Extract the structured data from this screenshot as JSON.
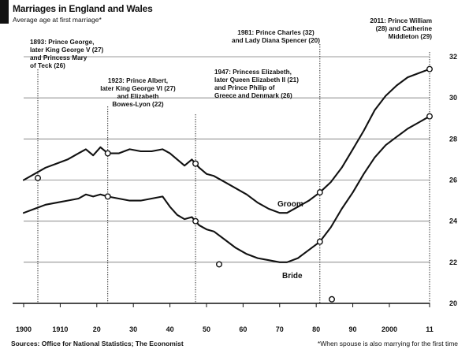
{
  "chart_data": {
    "type": "line",
    "title": "Marriages in England and Wales",
    "subtitle": "Average age at first marriage*",
    "x_ticks": [
      "1900",
      "1910",
      "20",
      "30",
      "40",
      "50",
      "60",
      "70",
      "80",
      "90",
      "2000",
      "11"
    ],
    "xlim": [
      1900,
      2011
    ],
    "y_ticks": [
      "32",
      "30",
      "28",
      "26",
      "24",
      "22",
      "20"
    ],
    "ylim": [
      20,
      32
    ],
    "grid": true,
    "series": [
      {
        "name": "Groom",
        "x": [
          1900,
          1903,
          1906,
          1909,
          1912,
          1915,
          1917,
          1919,
          1921,
          1923,
          1926,
          1929,
          1932,
          1935,
          1938,
          1940,
          1942,
          1944,
          1946,
          1948,
          1950,
          1952,
          1955,
          1958,
          1961,
          1964,
          1967,
          1970,
          1972,
          1975,
          1978,
          1981,
          1984,
          1987,
          1990,
          1993,
          1996,
          1999,
          2002,
          2005,
          2008,
          2011
        ],
        "y": [
          26.0,
          26.3,
          26.6,
          26.8,
          27.0,
          27.3,
          27.5,
          27.2,
          27.6,
          27.3,
          27.3,
          27.5,
          27.4,
          27.4,
          27.5,
          27.3,
          27.0,
          26.7,
          27.0,
          26.6,
          26.3,
          26.2,
          25.9,
          25.6,
          25.3,
          24.9,
          24.6,
          24.4,
          24.4,
          24.7,
          25.0,
          25.4,
          25.9,
          26.6,
          27.5,
          28.4,
          29.4,
          30.1,
          30.6,
          31.0,
          31.2,
          31.4
        ]
      },
      {
        "name": "Bride",
        "x": [
          1900,
          1903,
          1906,
          1909,
          1912,
          1915,
          1917,
          1919,
          1921,
          1923,
          1926,
          1929,
          1932,
          1935,
          1938,
          1940,
          1942,
          1944,
          1946,
          1948,
          1950,
          1952,
          1955,
          1958,
          1961,
          1964,
          1967,
          1970,
          1972,
          1975,
          1978,
          1981,
          1984,
          1987,
          1990,
          1993,
          1996,
          1999,
          2002,
          2005,
          2008,
          2011
        ],
        "y": [
          24.4,
          24.6,
          24.8,
          24.9,
          25.0,
          25.1,
          25.3,
          25.2,
          25.3,
          25.2,
          25.1,
          25.0,
          25.0,
          25.1,
          25.2,
          24.7,
          24.3,
          24.1,
          24.2,
          23.8,
          23.6,
          23.5,
          23.1,
          22.7,
          22.4,
          22.2,
          22.1,
          22.0,
          22.0,
          22.2,
          22.6,
          23.0,
          23.7,
          24.6,
          25.4,
          26.3,
          27.1,
          27.7,
          28.1,
          28.5,
          28.8,
          29.1
        ]
      }
    ],
    "events": [
      {
        "x": 1893,
        "label": [
          "1893: Prince George,",
          "later King George V (27)",
          "and Princess Mary",
          "of Teck (26)"
        ]
      },
      {
        "x": 1923,
        "label": [
          "1923: Prince Albert,",
          "later King George VI (27)",
          "and Elizabeth",
          "Bowes-Lyon (22)"
        ]
      },
      {
        "x": 1947,
        "label": [
          "1947: Princess Elizabeth,",
          "later Queen Elizabeth II (21)",
          "and Prince Philip of",
          "Greece and Denmark (26)"
        ]
      },
      {
        "x": 1981,
        "label": [
          "1981: Prince Charles (32)",
          "and Lady Diana Spencer (20)"
        ]
      },
      {
        "x": 2011,
        "label": [
          "2011: Prince William",
          "(28) and Catherine",
          "Middleton (29)"
        ]
      }
    ],
    "footnote_left": "Sources: Office for National Statistics; The Economist",
    "footnote_right": "*When spouse is also marrying for the first time"
  }
}
